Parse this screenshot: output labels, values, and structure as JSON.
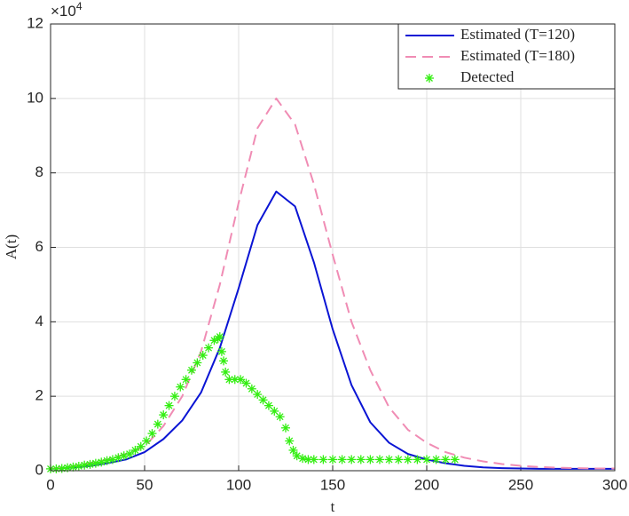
{
  "chart_data": {
    "type": "line",
    "xlabel": "t",
    "ylabel": "A(t)",
    "y_scale": {
      "base": "×10",
      "exponent": "4"
    },
    "xlim": [
      0,
      300
    ],
    "xticks": [
      0,
      50,
      100,
      150,
      200,
      250,
      300
    ],
    "ylim": [
      0,
      12
    ],
    "yticks": [
      0,
      2,
      4,
      6,
      8,
      10,
      12
    ],
    "grid": true,
    "legend": "upper right",
    "series": [
      {
        "name": "Estimated (T=120)",
        "color": "#0a14d4",
        "style": "solid",
        "x": [
          0,
          10,
          20,
          30,
          40,
          50,
          60,
          70,
          80,
          90,
          100,
          110,
          120,
          130,
          140,
          150,
          160,
          170,
          180,
          190,
          200,
          210,
          220,
          230,
          240,
          250,
          260,
          270,
          280,
          290,
          300
        ],
        "values": [
          0.05,
          0.08,
          0.12,
          0.2,
          0.3,
          0.5,
          0.85,
          1.35,
          2.1,
          3.3,
          4.9,
          6.6,
          7.5,
          7.1,
          5.6,
          3.8,
          2.3,
          1.3,
          0.75,
          0.45,
          0.3,
          0.2,
          0.13,
          0.09,
          0.07,
          0.06,
          0.05,
          0.05,
          0.05,
          0.05,
          0.05
        ]
      },
      {
        "name": "Estimated (T=180)",
        "color": "#f08cb4",
        "style": "dashed",
        "x": [
          0,
          10,
          20,
          30,
          40,
          50,
          60,
          70,
          80,
          90,
          100,
          110,
          120,
          130,
          140,
          150,
          160,
          170,
          180,
          190,
          200,
          210,
          220,
          230,
          240,
          250,
          260,
          270,
          280,
          290,
          300
        ],
        "values": [
          0.05,
          0.1,
          0.2,
          0.3,
          0.45,
          0.65,
          1.2,
          2.0,
          3.2,
          5.0,
          7.2,
          9.2,
          10.0,
          9.3,
          7.7,
          5.8,
          4.0,
          2.7,
          1.7,
          1.1,
          0.75,
          0.5,
          0.35,
          0.25,
          0.18,
          0.13,
          0.1,
          0.08,
          0.07,
          0.06,
          0.06
        ]
      },
      {
        "name": "Detected",
        "color": "#33ee11",
        "style": "marker",
        "x": [
          0,
          3,
          6,
          9,
          12,
          15,
          18,
          21,
          24,
          27,
          30,
          33,
          36,
          39,
          42,
          45,
          48,
          51,
          54,
          57,
          60,
          63,
          66,
          69,
          72,
          75,
          78,
          81,
          84,
          87,
          89,
          90,
          91,
          92,
          93,
          95,
          98,
          101,
          104,
          107,
          110,
          113,
          116,
          119,
          122,
          125,
          127,
          129,
          131,
          134,
          137,
          140,
          145,
          150,
          155,
          160,
          165,
          170,
          175,
          180,
          185,
          190,
          195,
          200,
          205,
          210,
          215
        ],
        "values": [
          0.05,
          0.05,
          0.06,
          0.08,
          0.1,
          0.12,
          0.15,
          0.17,
          0.2,
          0.23,
          0.27,
          0.3,
          0.35,
          0.4,
          0.45,
          0.55,
          0.65,
          0.8,
          1.0,
          1.25,
          1.5,
          1.75,
          2.0,
          2.25,
          2.45,
          2.7,
          2.9,
          3.1,
          3.3,
          3.5,
          3.55,
          3.6,
          3.2,
          2.95,
          2.65,
          2.45,
          2.45,
          2.45,
          2.35,
          2.2,
          2.05,
          1.9,
          1.75,
          1.6,
          1.45,
          1.15,
          0.8,
          0.55,
          0.4,
          0.33,
          0.3,
          0.3,
          0.3,
          0.3,
          0.3,
          0.3,
          0.3,
          0.3,
          0.3,
          0.3,
          0.3,
          0.3,
          0.3,
          0.3,
          0.3,
          0.3,
          0.3
        ]
      }
    ]
  }
}
